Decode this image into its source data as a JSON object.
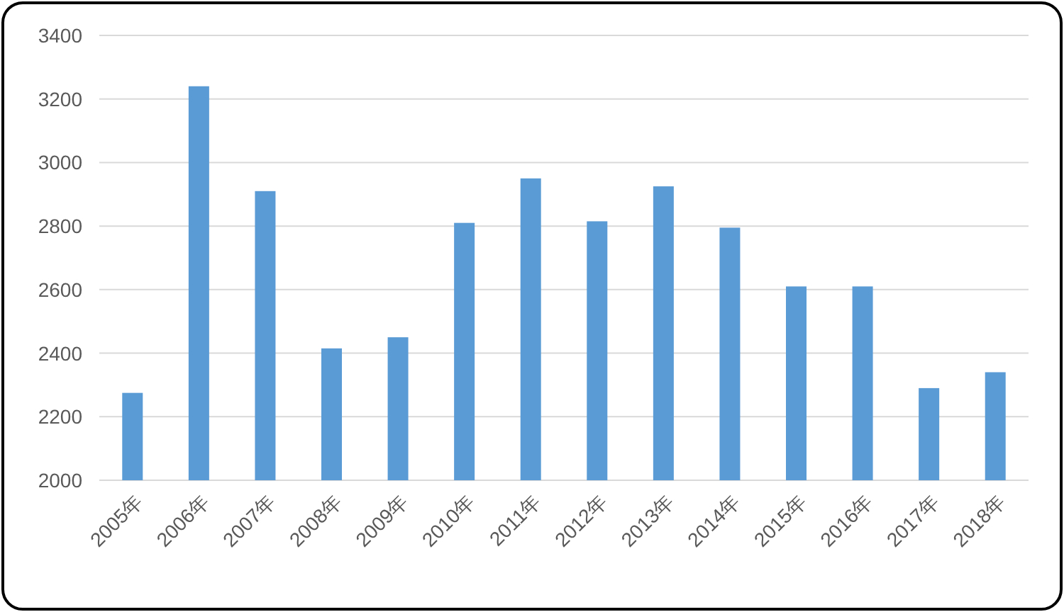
{
  "chart_data": {
    "type": "bar",
    "categories": [
      "2005年",
      "2006年",
      "2007年",
      "2008年",
      "2009年",
      "2010年",
      "2011年",
      "2012年",
      "2013年",
      "2014年",
      "2015年",
      "2016年",
      "2017年",
      "2018年"
    ],
    "values": [
      2275,
      3240,
      2910,
      2415,
      2450,
      2810,
      2950,
      2815,
      2925,
      2795,
      2610,
      2610,
      2290,
      2340
    ],
    "color": "#5b9bd5",
    "ylim": [
      2000,
      3400
    ],
    "yticks": [
      2000,
      2200,
      2400,
      2600,
      2800,
      3000,
      3200,
      3400
    ],
    "grid": "y"
  }
}
